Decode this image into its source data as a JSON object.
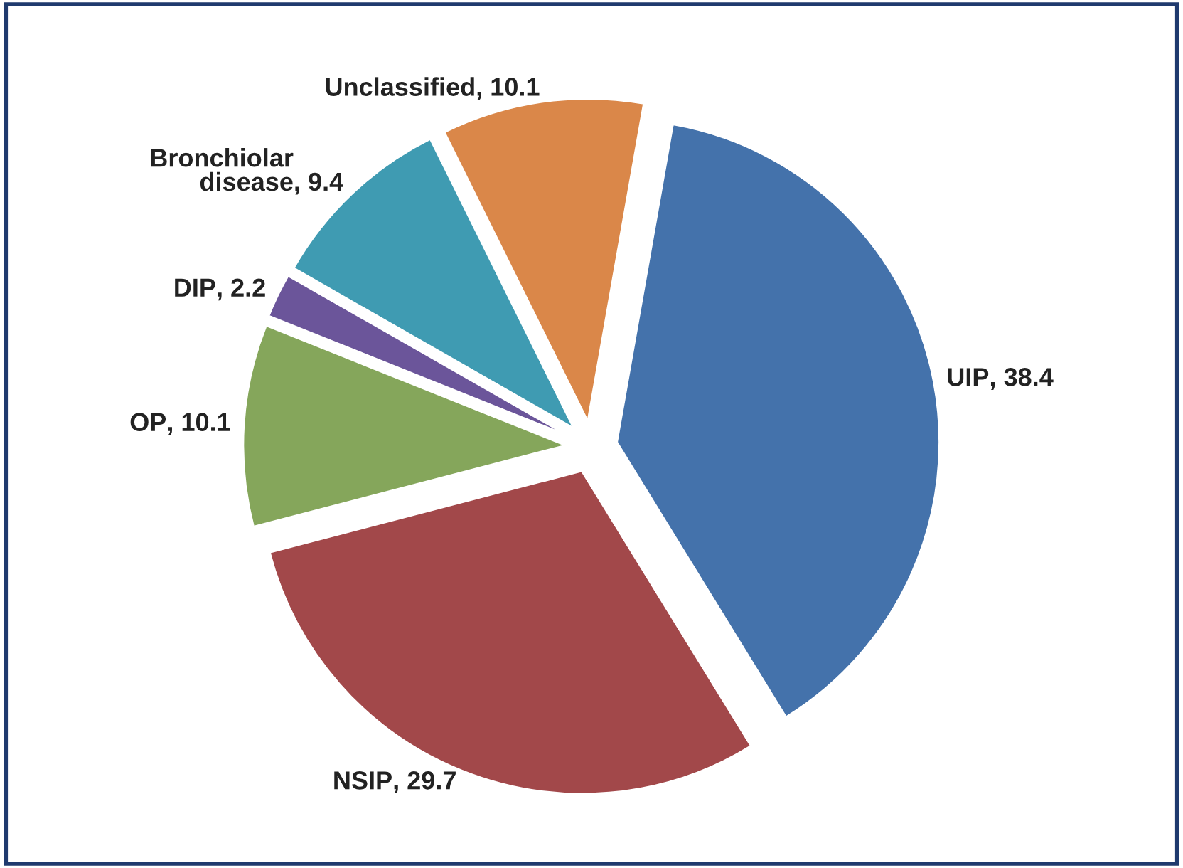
{
  "chart_data": {
    "type": "pie",
    "categories": [
      "UIP",
      "NSIP",
      "OP",
      "DIP",
      "Bronchiolar disease",
      "Unclassified"
    ],
    "values": [
      38.4,
      29.7,
      10.1,
      2.2,
      9.4,
      10.1
    ],
    "colors": [
      "#4472ab",
      "#a2484a",
      "#85a65b",
      "#6b559a",
      "#3f9bb2",
      "#da8749"
    ],
    "value_labels": [
      ", 38.4",
      ", 29.7",
      ", 10.1",
      ", 2.2",
      ", 9.4",
      ", 10.1"
    ]
  }
}
